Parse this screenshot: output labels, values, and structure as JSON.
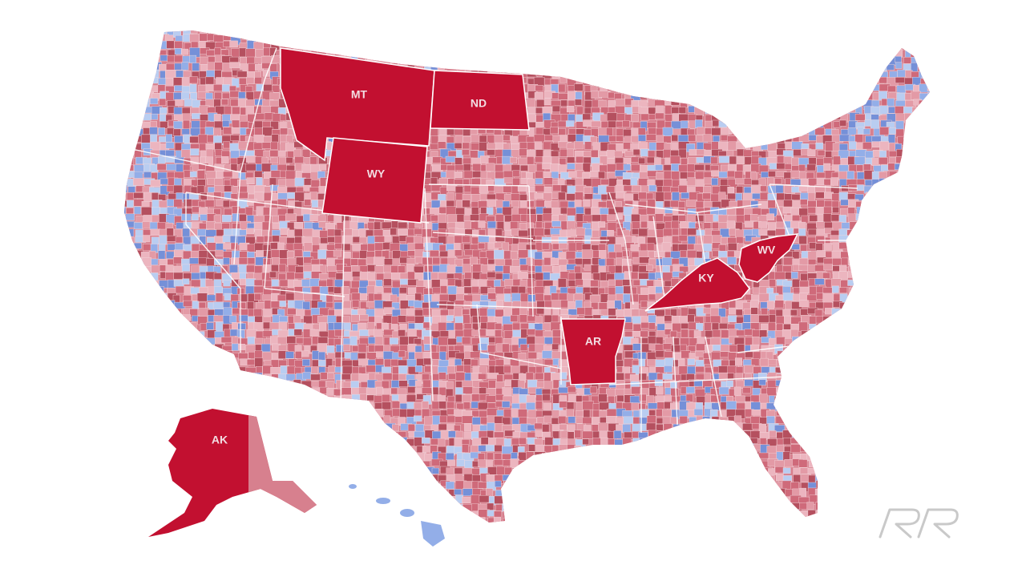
{
  "map": {
    "highlighted_states": [
      {
        "code": "MT",
        "label": "MT",
        "color": "#c21030"
      },
      {
        "code": "ND",
        "label": "ND",
        "color": "#c21030"
      },
      {
        "code": "WY",
        "label": "WY",
        "color": "#c21030"
      },
      {
        "code": "KY",
        "label": "KY",
        "color": "#c21030"
      },
      {
        "code": "WV",
        "label": "WV",
        "color": "#c21030"
      },
      {
        "code": "AR",
        "label": "AR",
        "color": "#c21030"
      },
      {
        "code": "AK",
        "label": "AK",
        "color": "#c21030"
      }
    ],
    "palette": {
      "highlight": "#c21030",
      "red_dark": "#b5505f",
      "red_mid": "#cf6a7a",
      "red_light": "#e39aa6",
      "pink": "#ecb5bf",
      "blue_light": "#b9cdf1",
      "blue_mid": "#93aee8",
      "blue_dark": "#7590d8",
      "border": "#ffffff"
    }
  },
  "logo": {
    "icon": "rr-logo-icon"
  }
}
